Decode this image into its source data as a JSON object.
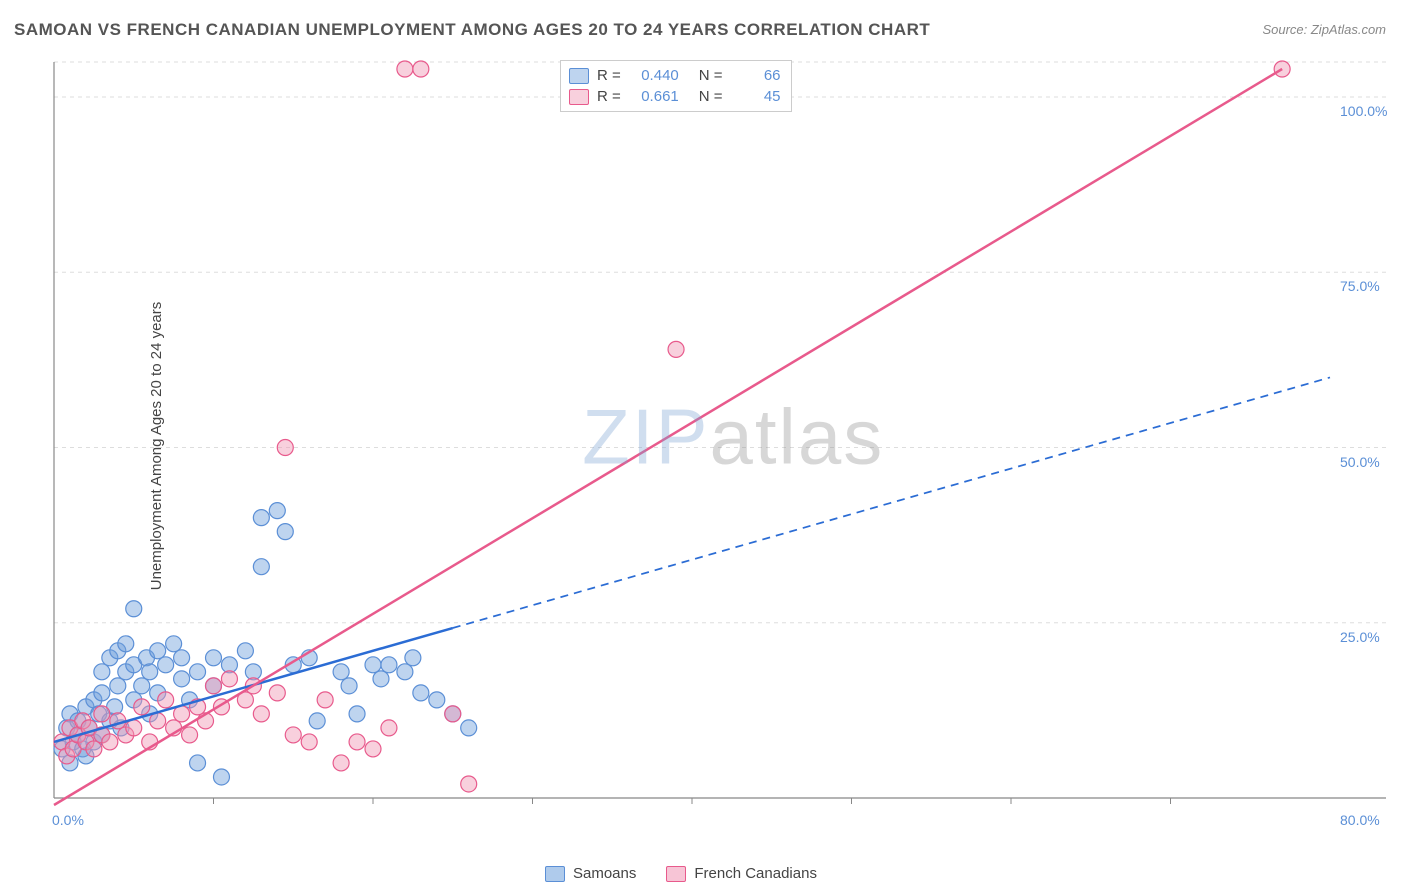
{
  "title": "SAMOAN VS FRENCH CANADIAN UNEMPLOYMENT AMONG AGES 20 TO 24 YEARS CORRELATION CHART",
  "source": "Source: ZipAtlas.com",
  "y_axis_label": "Unemployment Among Ages 20 to 24 years",
  "watermark_a": "ZIP",
  "watermark_b": "atlas",
  "chart": {
    "type": "scatter",
    "background_color": "#ffffff",
    "grid_color": "#dddddd",
    "axis_color": "#888888",
    "tick_label_color": "#5b8fd6",
    "xlim": [
      0,
      80
    ],
    "ylim": [
      0,
      105
    ],
    "x_ticks": [
      {
        "v": 0,
        "label": "0.0%"
      },
      {
        "v": 80,
        "label": "80.0%"
      }
    ],
    "x_minor_ticks": [
      10,
      20,
      30,
      40,
      50,
      60,
      70
    ],
    "y_ticks": [
      {
        "v": 25,
        "label": "25.0%"
      },
      {
        "v": 50,
        "label": "50.0%"
      },
      {
        "v": 75,
        "label": "75.0%"
      },
      {
        "v": 100,
        "label": "100.0%"
      }
    ],
    "series": [
      {
        "name": "Samoans",
        "color_fill": "rgba(110,160,220,0.45)",
        "color_stroke": "#5b8fd6",
        "marker_radius": 8,
        "trend_color": "#2b6cd4",
        "trend_width": 2.5,
        "trend_dash_after_x": 25,
        "trend": {
          "x1": 0,
          "y1": 8,
          "x2": 80,
          "y2": 60
        },
        "r": "0.440",
        "n": "66",
        "points": [
          [
            0.5,
            7
          ],
          [
            0.8,
            10
          ],
          [
            1.0,
            5
          ],
          [
            1.0,
            12
          ],
          [
            1.2,
            8
          ],
          [
            1.5,
            9
          ],
          [
            1.5,
            11
          ],
          [
            1.8,
            7
          ],
          [
            2.0,
            13
          ],
          [
            2.0,
            6
          ],
          [
            2.2,
            10
          ],
          [
            2.5,
            14
          ],
          [
            2.5,
            8
          ],
          [
            2.8,
            12
          ],
          [
            3.0,
            15
          ],
          [
            3.0,
            18
          ],
          [
            3.0,
            9
          ],
          [
            3.5,
            11
          ],
          [
            3.5,
            20
          ],
          [
            3.8,
            13
          ],
          [
            4.0,
            16
          ],
          [
            4.0,
            21
          ],
          [
            4.2,
            10
          ],
          [
            4.5,
            18
          ],
          [
            4.5,
            22
          ],
          [
            5.0,
            14
          ],
          [
            5.0,
            19
          ],
          [
            5.0,
            27
          ],
          [
            5.5,
            16
          ],
          [
            5.8,
            20
          ],
          [
            6.0,
            12
          ],
          [
            6.0,
            18
          ],
          [
            6.5,
            21
          ],
          [
            6.5,
            15
          ],
          [
            7.0,
            19
          ],
          [
            7.5,
            22
          ],
          [
            8.0,
            17
          ],
          [
            8.0,
            20
          ],
          [
            8.5,
            14
          ],
          [
            9.0,
            18
          ],
          [
            9.0,
            5
          ],
          [
            10.0,
            16
          ],
          [
            10.0,
            20
          ],
          [
            10.5,
            3
          ],
          [
            11.0,
            19
          ],
          [
            12.0,
            21
          ],
          [
            12.5,
            18
          ],
          [
            13.0,
            40
          ],
          [
            13.0,
            33
          ],
          [
            14.0,
            41
          ],
          [
            14.5,
            38
          ],
          [
            15.0,
            19
          ],
          [
            16.0,
            20
          ],
          [
            16.5,
            11
          ],
          [
            18.0,
            18
          ],
          [
            18.5,
            16
          ],
          [
            20.0,
            19
          ],
          [
            20.5,
            17
          ],
          [
            21.0,
            19
          ],
          [
            22.0,
            18
          ],
          [
            22.5,
            20
          ],
          [
            24.0,
            14
          ],
          [
            25.0,
            12
          ],
          [
            26.0,
            10
          ],
          [
            23.0,
            15
          ],
          [
            19.0,
            12
          ]
        ]
      },
      {
        "name": "French Canadians",
        "color_fill": "rgba(240,150,180,0.45)",
        "color_stroke": "#e85a8c",
        "marker_radius": 8,
        "trend_color": "#e85a8c",
        "trend_width": 2.5,
        "trend_dash_after_x": 999,
        "trend": {
          "x1": 0,
          "y1": -1,
          "x2": 77,
          "y2": 104
        },
        "r": "0.661",
        "n": "45",
        "points": [
          [
            0.5,
            8
          ],
          [
            0.8,
            6
          ],
          [
            1.0,
            10
          ],
          [
            1.2,
            7
          ],
          [
            1.5,
            9
          ],
          [
            1.8,
            11
          ],
          [
            2.0,
            8
          ],
          [
            2.2,
            10
          ],
          [
            2.5,
            7
          ],
          [
            3.0,
            9
          ],
          [
            3.0,
            12
          ],
          [
            3.5,
            8
          ],
          [
            4.0,
            11
          ],
          [
            4.5,
            9
          ],
          [
            5.0,
            10
          ],
          [
            5.5,
            13
          ],
          [
            6.0,
            8
          ],
          [
            6.5,
            11
          ],
          [
            7.0,
            14
          ],
          [
            7.5,
            10
          ],
          [
            8.0,
            12
          ],
          [
            8.5,
            9
          ],
          [
            9.0,
            13
          ],
          [
            9.5,
            11
          ],
          [
            10.0,
            16
          ],
          [
            10.5,
            13
          ],
          [
            11.0,
            17
          ],
          [
            12.0,
            14
          ],
          [
            12.5,
            16
          ],
          [
            13.0,
            12
          ],
          [
            14.0,
            15
          ],
          [
            14.5,
            50
          ],
          [
            15.0,
            9
          ],
          [
            16.0,
            8
          ],
          [
            17.0,
            14
          ],
          [
            18.0,
            5
          ],
          [
            19.0,
            8
          ],
          [
            20.0,
            7
          ],
          [
            21.0,
            10
          ],
          [
            22.0,
            104
          ],
          [
            23.0,
            104
          ],
          [
            25.0,
            12
          ],
          [
            26.0,
            2
          ],
          [
            39.0,
            64
          ],
          [
            77.0,
            104
          ]
        ]
      }
    ],
    "legend_bottom": [
      {
        "label": "Samoans",
        "fill": "rgba(110,160,220,0.55)",
        "stroke": "#5b8fd6"
      },
      {
        "label": "French Canadians",
        "fill": "rgba(240,150,180,0.55)",
        "stroke": "#e85a8c"
      }
    ]
  }
}
